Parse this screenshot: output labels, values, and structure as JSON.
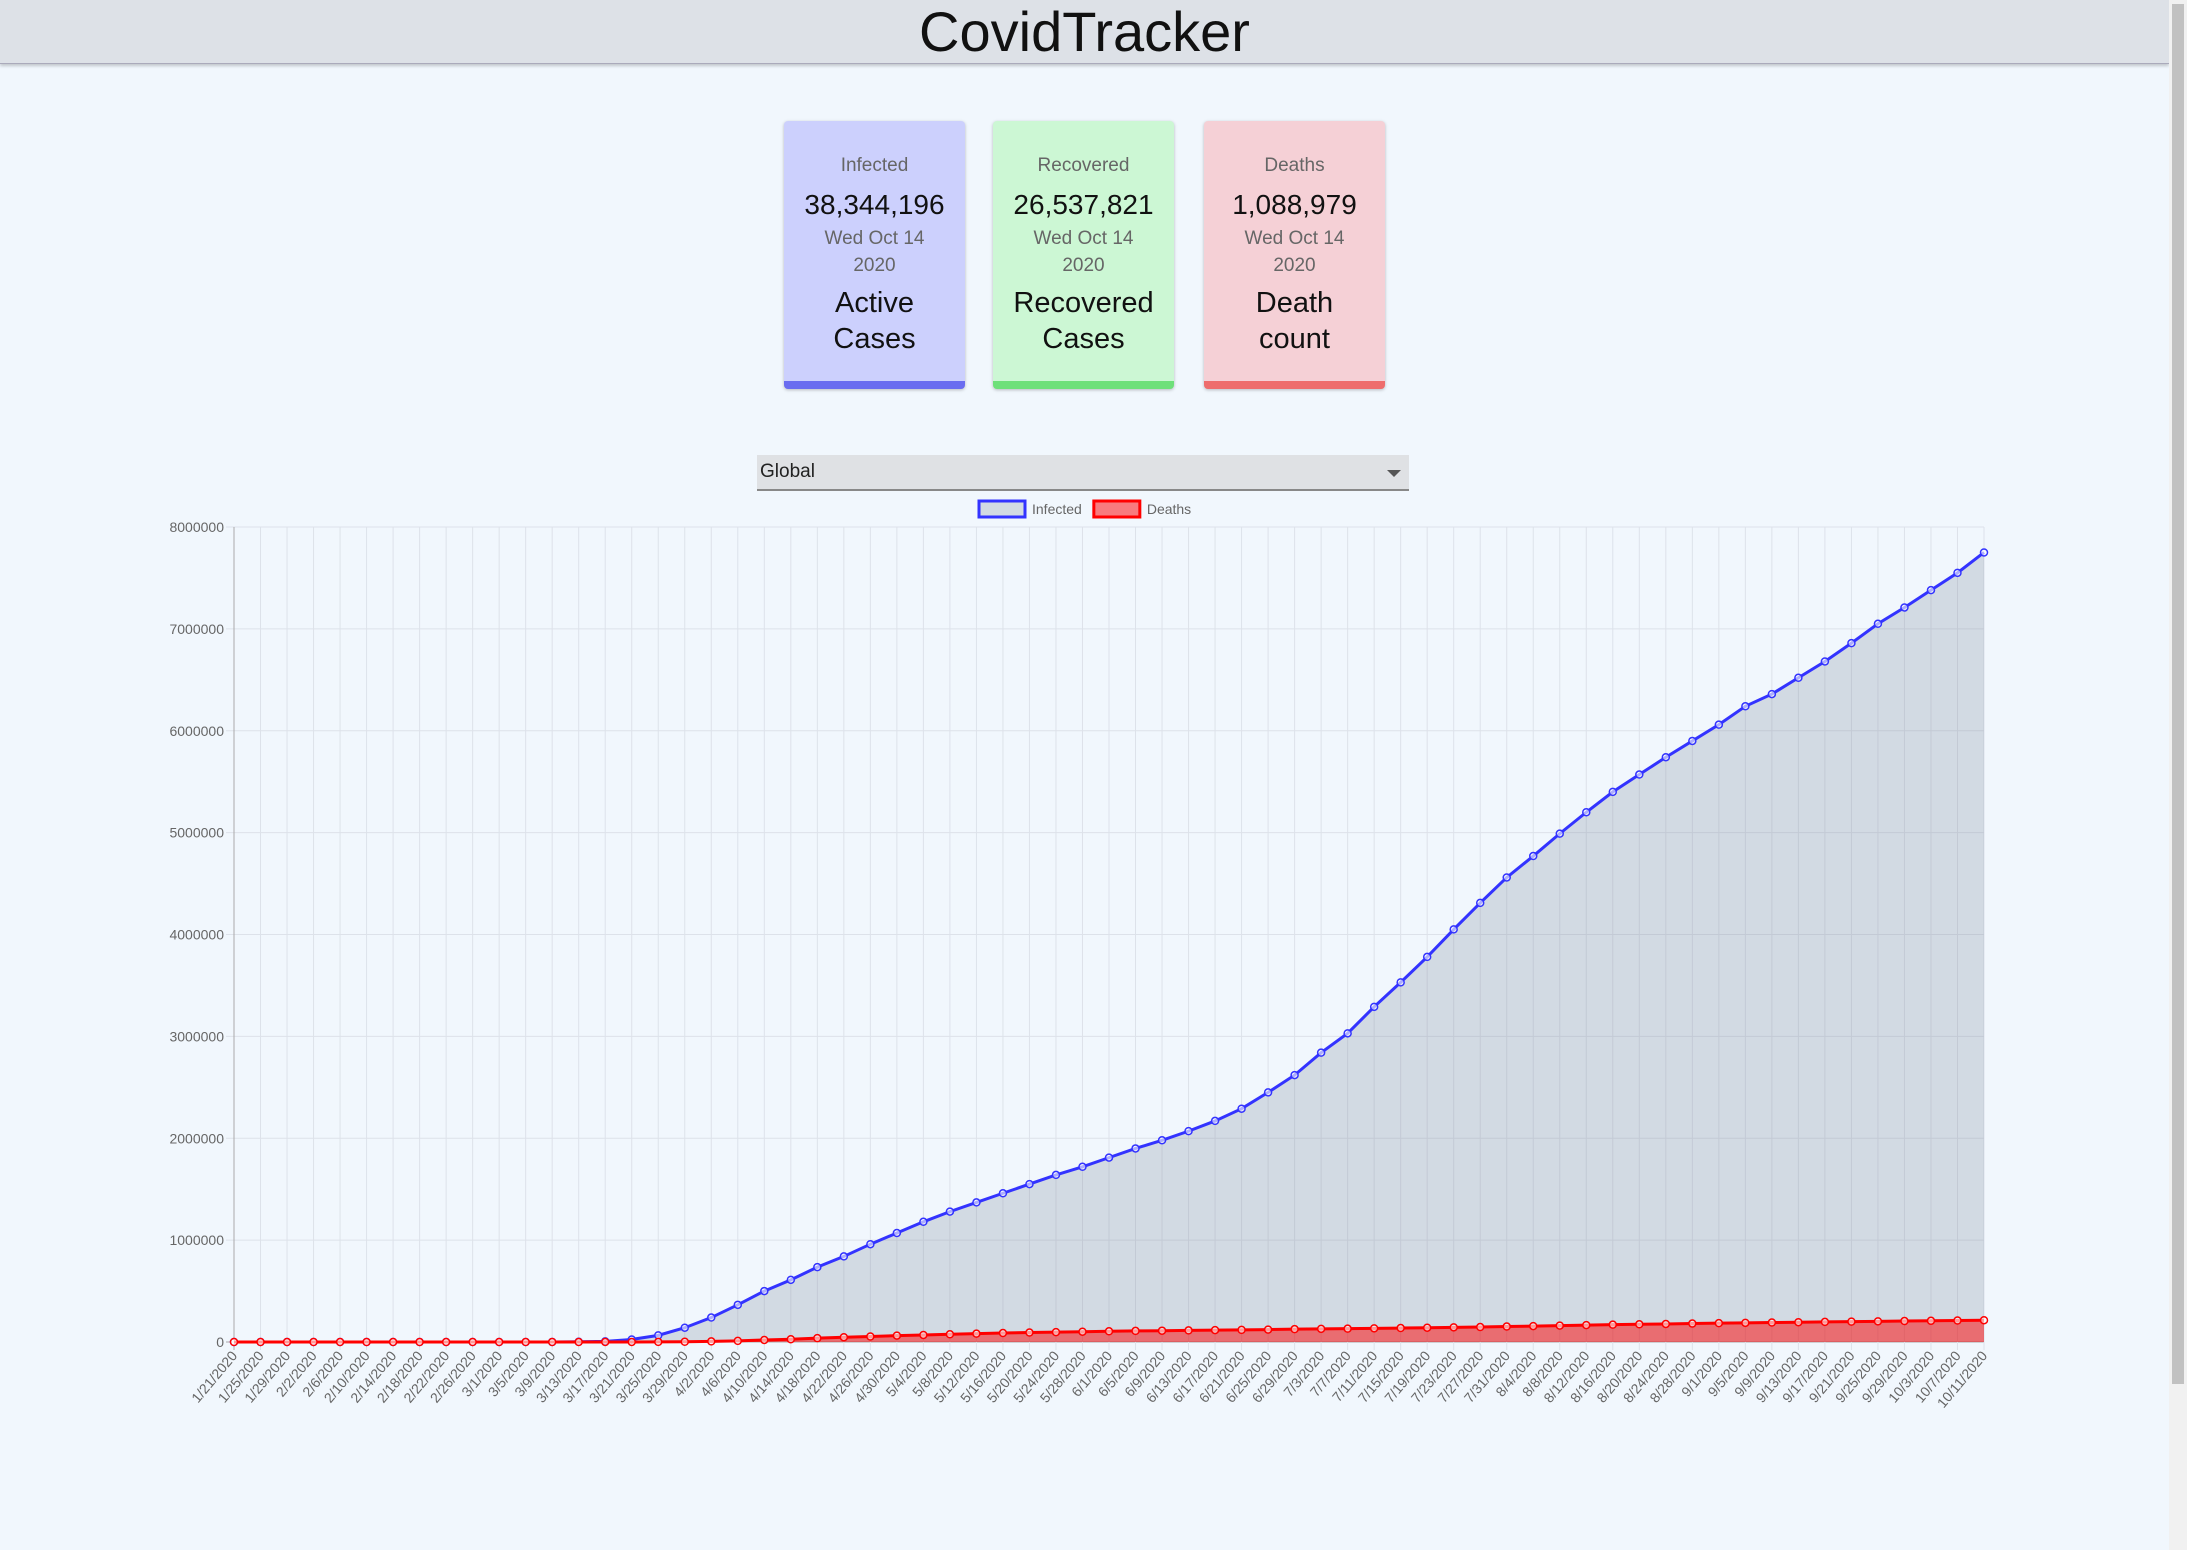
{
  "header": {
    "title": "CovidTracker"
  },
  "cards": [
    {
      "label": "Infected",
      "value": "38,344,196",
      "date": "Wed Oct 14 2020",
      "caption": "Active Cases"
    },
    {
      "label": "Recovered",
      "value": "26,537,821",
      "date": "Wed Oct 14 2020",
      "caption": "Recovered Cases"
    },
    {
      "label": "Deaths",
      "value": "1,088,979",
      "date": "Wed Oct 14 2020",
      "caption": "Death count"
    }
  ],
  "select": {
    "value": "Global"
  },
  "chart_data": {
    "type": "line",
    "categories": [
      "1/21/2020",
      "1/25/2020",
      "1/29/2020",
      "2/2/2020",
      "2/6/2020",
      "2/10/2020",
      "2/14/2020",
      "2/18/2020",
      "2/22/2020",
      "2/26/2020",
      "3/1/2020",
      "3/5/2020",
      "3/9/2020",
      "3/13/2020",
      "3/17/2020",
      "3/21/2020",
      "3/25/2020",
      "3/29/2020",
      "4/2/2020",
      "4/6/2020",
      "4/10/2020",
      "4/14/2020",
      "4/18/2020",
      "4/22/2020",
      "4/26/2020",
      "4/30/2020",
      "5/4/2020",
      "5/8/2020",
      "5/12/2020",
      "5/16/2020",
      "5/20/2020",
      "5/24/2020",
      "5/28/2020",
      "6/1/2020",
      "6/5/2020",
      "6/9/2020",
      "6/13/2020",
      "6/17/2020",
      "6/21/2020",
      "6/25/2020",
      "6/29/2020",
      "7/3/2020",
      "7/7/2020",
      "7/11/2020",
      "7/15/2020",
      "7/19/2020",
      "7/23/2020",
      "7/27/2020",
      "7/31/2020",
      "8/4/2020",
      "8/8/2020",
      "8/12/2020",
      "8/16/2020",
      "8/20/2020",
      "8/24/2020",
      "8/28/2020",
      "9/1/2020",
      "9/5/2020",
      "9/9/2020",
      "9/13/2020",
      "9/17/2020",
      "9/21/2020",
      "9/25/2020",
      "9/29/2020",
      "10/3/2020",
      "10/7/2020",
      "10/11/2020"
    ],
    "series": [
      {
        "name": "Infected",
        "color": "#3333ff",
        "fill": "rgba(120,130,150,0.25)",
        "values": [
          1,
          2,
          5,
          8,
          12,
          12,
          13,
          15,
          15,
          15,
          30,
          200,
          600,
          2000,
          6400,
          25000,
          65000,
          140000,
          240000,
          365000,
          500000,
          610000,
          735000,
          840000,
          960000,
          1070000,
          1180000,
          1280000,
          1370000,
          1460000,
          1550000,
          1640000,
          1720000,
          1810000,
          1900000,
          1980000,
          2070000,
          2170000,
          2290000,
          2450000,
          2620000,
          2840000,
          3030000,
          3290000,
          3530000,
          3780000,
          4050000,
          4310000,
          4560000,
          4770000,
          4990000,
          5200000,
          5400000,
          5570000,
          5740000,
          5900000,
          6060000,
          6240000,
          6360000,
          6520000,
          6680000,
          6860000,
          7050000,
          7210000,
          7380000,
          7550000,
          7750000
        ]
      },
      {
        "name": "Deaths",
        "color": "#ff0000",
        "fill": "rgba(255,0,0,0.5)",
        "values": [
          0,
          0,
          0,
          0,
          0,
          0,
          0,
          0,
          0,
          0,
          1,
          11,
          22,
          50,
          100,
          300,
          1000,
          2500,
          6000,
          11000,
          20000,
          27000,
          38000,
          47000,
          54000,
          63000,
          69000,
          76000,
          82000,
          88000,
          93000,
          97000,
          101000,
          105000,
          109000,
          111000,
          114000,
          117000,
          119000,
          122000,
          126000,
          129000,
          131000,
          134000,
          137000,
          140000,
          144000,
          147000,
          152000,
          156000,
          161000,
          166000,
          170000,
          174000,
          177000,
          181000,
          185000,
          188000,
          191000,
          194000,
          197000,
          200000,
          203000,
          206000,
          208000,
          211000,
          214000
        ]
      }
    ],
    "ylim": [
      0,
      8000000
    ],
    "yticks": [
      0,
      1000000,
      2000000,
      3000000,
      4000000,
      5000000,
      6000000,
      7000000,
      8000000
    ],
    "grid": true,
    "legend": "top"
  }
}
